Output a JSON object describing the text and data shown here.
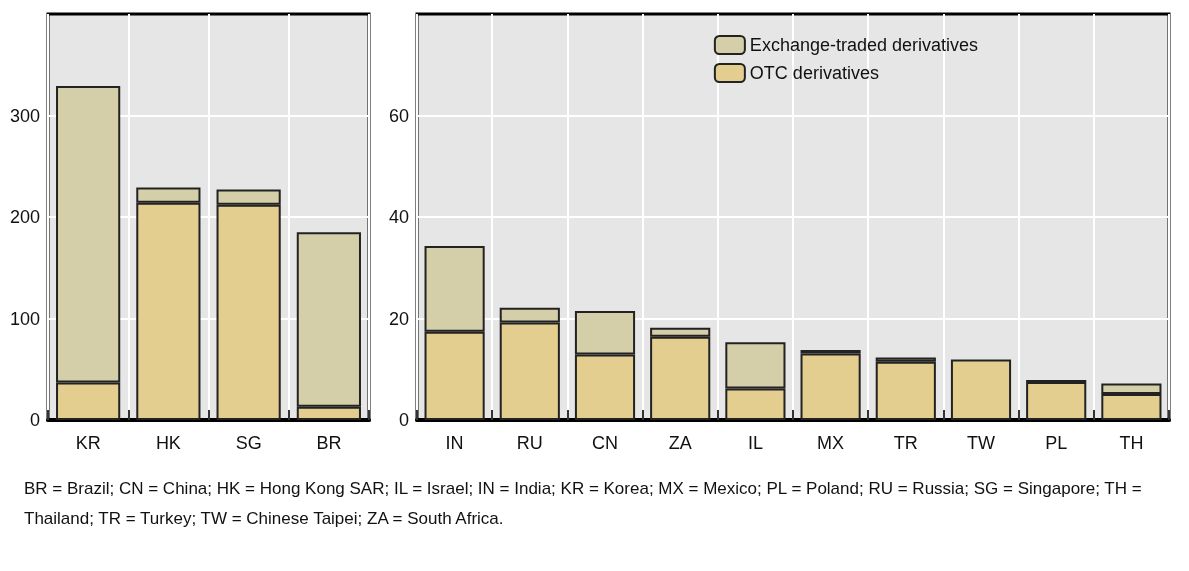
{
  "chart_data": [
    {
      "type": "bar",
      "stacked": true,
      "categories": [
        "KR",
        "HK",
        "SG",
        "BR"
      ],
      "ylim": [
        0,
        400
      ],
      "yticks": [
        0,
        100,
        200,
        300
      ],
      "grid": true,
      "series": [
        {
          "color": "#e3cd8f",
          "values": [
            37,
            214,
            212,
            13
          ]
        },
        {
          "color": "#d4cfa8",
          "values": [
            292,
            15,
            15,
            172
          ]
        }
      ]
    },
    {
      "type": "bar",
      "stacked": true,
      "categories": [
        "IN",
        "RU",
        "CN",
        "ZA",
        "IL",
        "MX",
        "TR",
        "TW",
        "PL",
        "TH"
      ],
      "ylim": [
        0,
        80
      ],
      "yticks": [
        0,
        20,
        40,
        60
      ],
      "grid": true,
      "legend": "top right",
      "series": [
        {
          "name": "OTC derivatives",
          "color": "#e3cd8f",
          "values": [
            17.4,
            19.2,
            12.9,
            16.4,
            6.2,
            13.1,
            11.5,
            11.9,
            7.5,
            5.1
          ]
        },
        {
          "name": "Exchange-traded derivatives",
          "color": "#d4cfa8",
          "values": [
            16.9,
            2.9,
            8.6,
            1.8,
            9.1,
            0.7,
            0.8,
            null,
            0.4,
            2.1
          ]
        }
      ],
      "annotations": [
        "BR = Brazil;  CN = China;  HK = Hong  Kong  SAR;  IL = Israel;  IN = India;  KR = Korea;  MX = Mexico;  PL = Poland;  RU = Russia; SG = Singapore; TH = Thailand; TR = Turkey; TW = Chinese Taipei; ZA = South Africa."
      ]
    }
  ]
}
